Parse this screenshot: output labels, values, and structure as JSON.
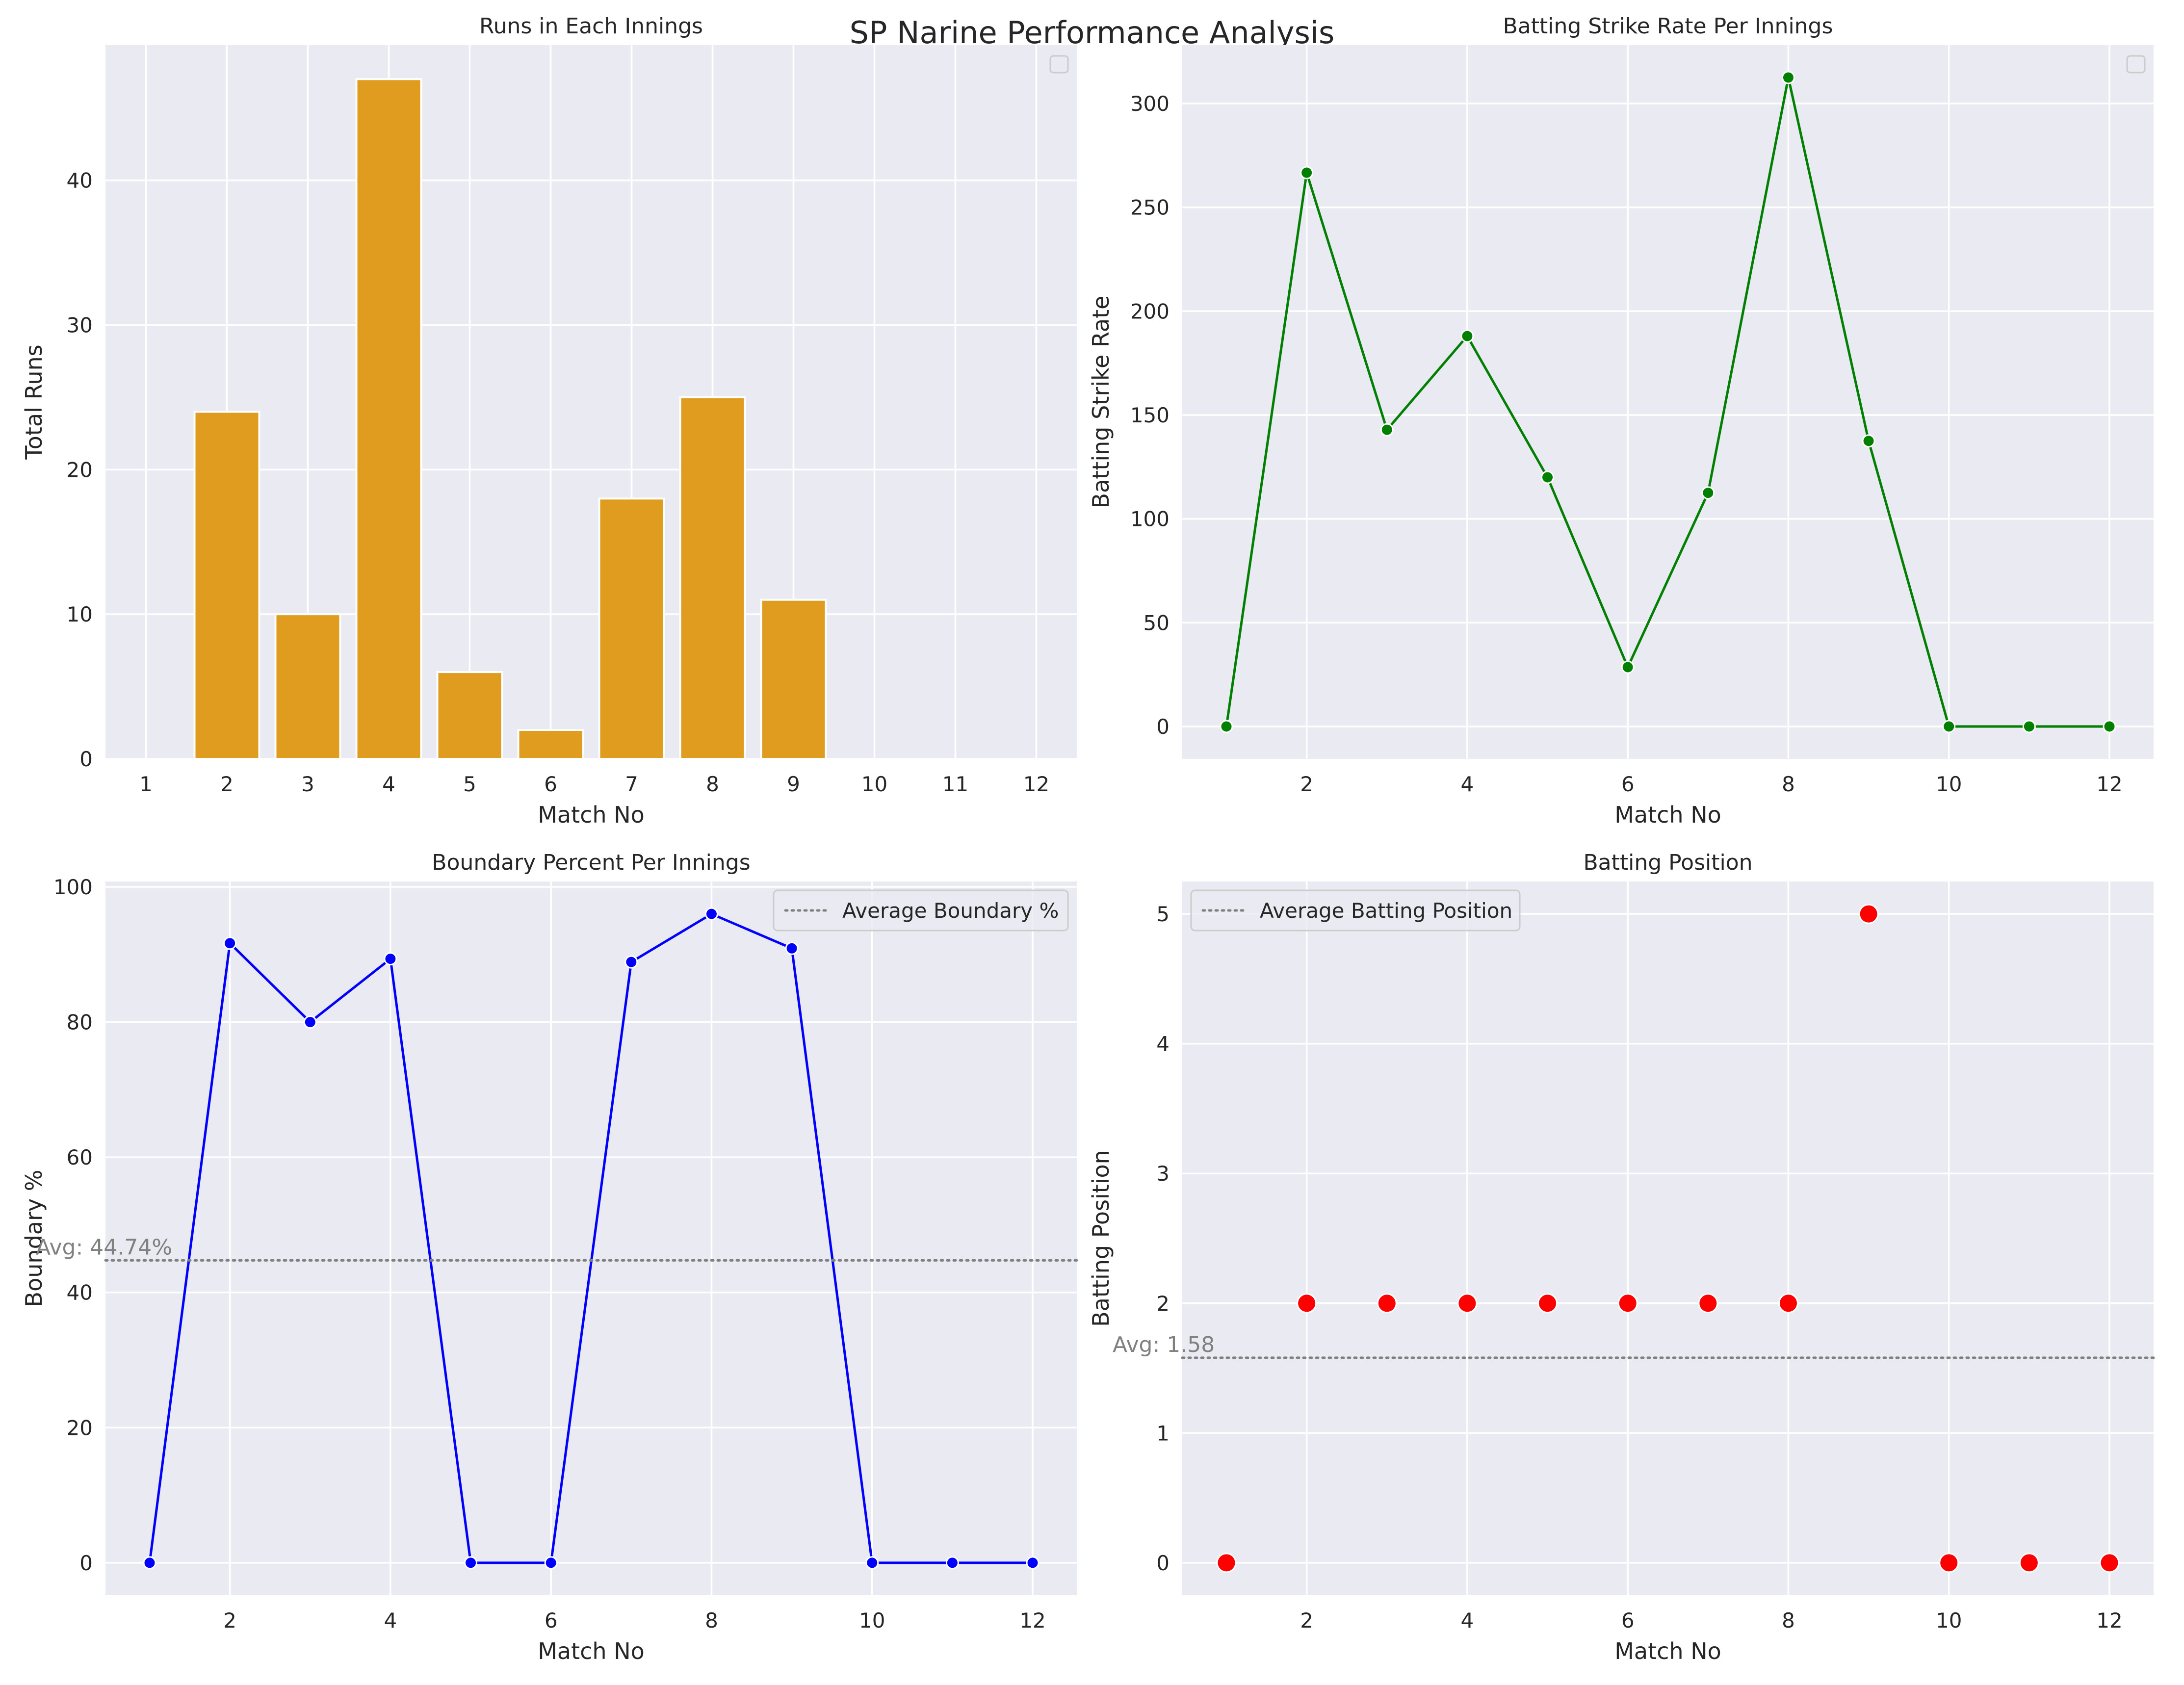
{
  "figure": {
    "suptitle": "SP Narine Performance Analysis"
  },
  "colors": {
    "panel_bg": "#eaeaf2",
    "grid": "#ffffff",
    "text": "#262626",
    "bar": "#e09c1f",
    "strike_rate_line": "#008000",
    "boundary_line": "#0000ff",
    "position_marker": "#ff0000",
    "avg_line": "#808080"
  },
  "chart_data": [
    {
      "type": "bar",
      "title": "Runs in Each Innings",
      "xlabel": "Match No",
      "ylabel": "Total Runs",
      "categories": [
        "1",
        "2",
        "3",
        "4",
        "5",
        "6",
        "7",
        "8",
        "9",
        "10",
        "11",
        "12"
      ],
      "values": [
        0,
        24,
        10,
        47,
        6,
        2,
        18,
        25,
        11,
        0,
        0,
        0
      ],
      "ylim": [
        0,
        49.35
      ],
      "yticks": [
        0,
        10,
        20,
        30,
        40
      ],
      "legend": {
        "placement": "upper-right",
        "entries": []
      },
      "grid": true
    },
    {
      "type": "line",
      "title": "Batting Strike Rate Per Innings",
      "xlabel": "Match No",
      "ylabel": "Batting Strike Rate",
      "x": [
        1,
        2,
        3,
        4,
        5,
        6,
        7,
        8,
        9,
        10,
        11,
        12
      ],
      "series": [
        {
          "values": [
            0,
            266.67,
            142.86,
            188,
            120,
            28.57,
            112.5,
            312.5,
            137.5,
            0,
            0,
            0
          ]
        }
      ],
      "xlim": [
        0.45,
        12.55
      ],
      "ylim": [
        -15.6,
        328.1
      ],
      "xticks": [
        2,
        4,
        6,
        8,
        10,
        12
      ],
      "yticks": [
        0,
        50,
        100,
        150,
        200,
        250,
        300
      ],
      "legend": {
        "placement": "upper-right",
        "entries": []
      },
      "marker": "circle",
      "grid": true
    },
    {
      "type": "line",
      "title": "Boundary Percent Per Innings",
      "xlabel": "Match No",
      "ylabel": "Boundary %",
      "x": [
        1,
        2,
        3,
        4,
        5,
        6,
        7,
        8,
        9,
        10,
        11,
        12
      ],
      "series": [
        {
          "values": [
            0,
            91.67,
            80,
            89.36,
            0,
            0,
            88.89,
            96,
            90.91,
            0,
            0,
            0
          ]
        }
      ],
      "reference_line": {
        "y": 44.74,
        "label": "Average Boundary %",
        "annotation": "Avg: 44.74%",
        "style": "dotted"
      },
      "xlim": [
        0.45,
        12.55
      ],
      "ylim": [
        -4.8,
        100.8
      ],
      "xticks": [
        2,
        4,
        6,
        8,
        10,
        12
      ],
      "yticks": [
        0,
        20,
        40,
        60,
        80,
        100
      ],
      "legend": {
        "placement": "upper-right",
        "entries": [
          "Average Boundary %"
        ]
      },
      "marker": "circle",
      "grid": true
    },
    {
      "type": "scatter",
      "title": "Batting Position",
      "xlabel": "Match No",
      "ylabel": "Batting Position",
      "x": [
        1,
        2,
        3,
        4,
        5,
        6,
        7,
        8,
        9,
        10,
        11,
        12
      ],
      "series": [
        {
          "values": [
            0,
            2,
            2,
            2,
            2,
            2,
            2,
            2,
            5,
            0,
            0,
            0
          ]
        }
      ],
      "reference_line": {
        "y": 1.58,
        "label": "Average Batting Position",
        "annotation": "Avg: 1.58",
        "style": "dotted"
      },
      "xlim": [
        0.45,
        12.55
      ],
      "ylim": [
        -0.25,
        5.25
      ],
      "xticks": [
        2,
        4,
        6,
        8,
        10,
        12
      ],
      "yticks": [
        0,
        1,
        2,
        3,
        4,
        5
      ],
      "legend": {
        "placement": "upper-left",
        "entries": [
          "Average Batting Position"
        ]
      },
      "grid": true
    }
  ]
}
